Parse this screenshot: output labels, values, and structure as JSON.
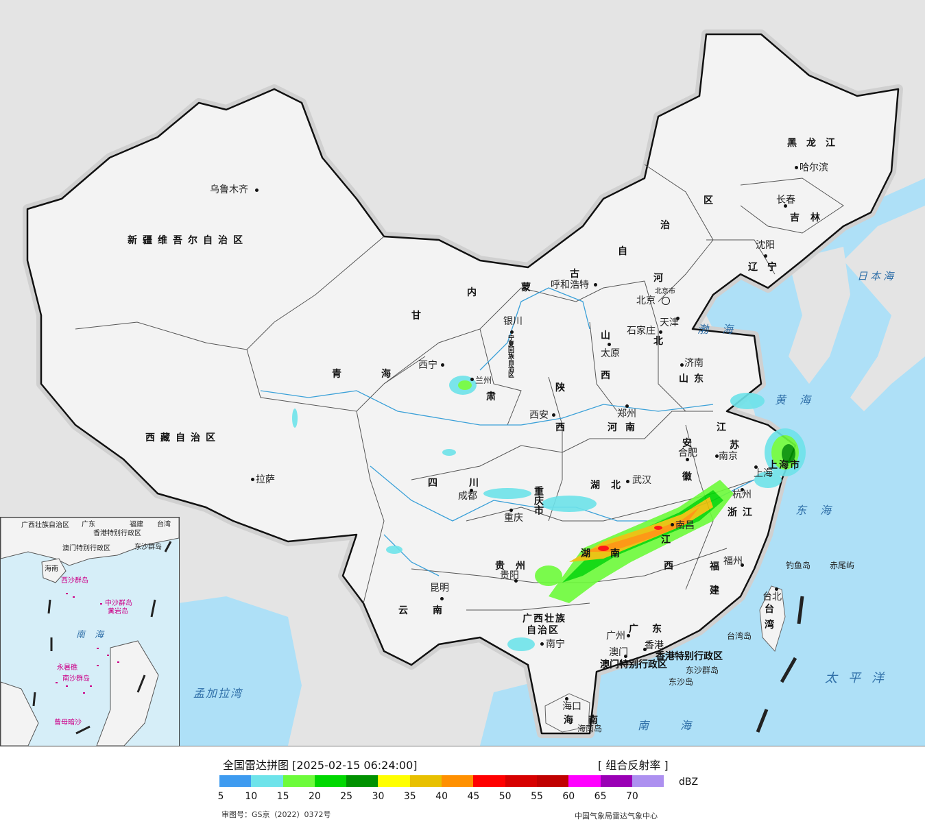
{
  "map": {
    "land_color": "#f3f3f3",
    "sea_color": "#aee0f7",
    "outside_color": "#e4e4e4",
    "border_color": "#111111"
  },
  "cities": {
    "urumqi": "乌鲁木齐",
    "lhasa": "拉萨",
    "xining": "西宁",
    "lanzhou": "兰州",
    "yinchuan": "银川",
    "hohhot": "呼和浩特",
    "beijing": "北京",
    "beijing_city": "北京市",
    "tianjin": "天津",
    "tianjin_city": "天津",
    "shijiazhuang": "石家庄",
    "taiyuan": "太原",
    "jinan": "济南",
    "zhengzhou": "郑州",
    "xian": "西安",
    "chengdu": "成都",
    "chongqing": "重庆",
    "wuhan": "武汉",
    "hefei": "合肥",
    "nanjing": "南京",
    "shanghai": "上海",
    "hangzhou": "杭州",
    "nanchang": "南昌",
    "fuzhou": "福州",
    "guiyang": "贵阳",
    "kunming": "昆明",
    "nanning": "南宁",
    "guangzhou": "广州",
    "macau": "澳门",
    "hongkong": "香港",
    "haikou": "海口",
    "taipei": "台北",
    "harbin": "哈尔滨",
    "changchun": "长春",
    "shenyang": "沈阳"
  },
  "provinces": {
    "xinjiang": "新疆维吾尔自治区",
    "xizang": "西藏自治区",
    "qinghai_1": "青",
    "qinghai_2": "海",
    "gansu_1": "甘",
    "gansu_2": "肃",
    "neimenggu_1": "内",
    "neimenggu_2": "蒙",
    "neimenggu_3": "古",
    "neimenggu_4": "自",
    "neimenggu_5": "治",
    "neimenggu_6": "区",
    "ningxia": "宁夏回族自治区",
    "shaanxi_1": "陕",
    "shaanxi_2": "西",
    "shanxi_1": "山",
    "shanxi_2": "西",
    "hebei_1": "河",
    "hebei_2": "北",
    "shandong": "山东",
    "henan": "河南",
    "sichuan": "四川",
    "chongqing": "重庆市",
    "hubei": "湖北",
    "hunan_1": "湖",
    "hunan_2": "南",
    "anhui_1": "安",
    "anhui_2": "徽",
    "jiangsu_1": "江",
    "jiangsu_2": "苏",
    "shanghai": "上海市",
    "zhejiang": "浙江",
    "jiangxi_1": "江",
    "jiangxi_2": "西",
    "fujian_1": "福",
    "fujian_2": "建",
    "guizhou": "贵州",
    "yunnan": "云南",
    "guangxi": "广西壮族",
    "guangxi_2": "自治区",
    "guangdong": "广东",
    "hongkong_sar": "香港特别行政区",
    "macau_sar": "澳门特别行政区",
    "hainan_1": "海",
    "hainan_2": "南",
    "taiwan_1": "台",
    "taiwan_2": "湾",
    "heilongjiang": "黑龙江",
    "jilin": "吉林",
    "liaoning": "辽宁"
  },
  "islands": {
    "diaoyu": "钓鱼岛",
    "chiwei": "赤尾屿",
    "taiwan_island": "台湾岛",
    "dongsha_islands": "东沙群岛",
    "dongsha_island": "东沙岛",
    "hainan_island": "海南岛"
  },
  "seas": {
    "japan_sea": "日本海",
    "bohai": "渤海",
    "yellow_sea": "黄海",
    "east_sea": "东海",
    "pacific": "太平洋",
    "south_sea": "南海",
    "bengal": "孟加拉湾"
  },
  "inset": {
    "guangxi": "广西壮族自治区",
    "guangdong": "广东",
    "fujian": "福建",
    "taiwan": "台湾",
    "hongkong": "香港特别行政区",
    "macau": "澳门特别行政区",
    "dongsha": "东沙群岛",
    "hainan": "海南",
    "xisha": "西沙群岛",
    "zhongsha": "中沙群岛",
    "huangyan": "黄岩岛",
    "nansha": "南沙群岛",
    "south_sea": "南海",
    "yongshu": "永暑礁",
    "zengmu": "曾母暗沙"
  },
  "legend": {
    "title": "全国雷达拼图 [2025-02-15 06:24:00]",
    "product": "[ 组合反射率 ]",
    "unit": "dBZ",
    "approval": "审图号：GS京（2022）0372号",
    "source": "中国气象局雷达气象中心",
    "ticks": [
      "5",
      "10",
      "15",
      "20",
      "25",
      "30",
      "35",
      "40",
      "45",
      "50",
      "55",
      "60",
      "65",
      "70"
    ],
    "colors": [
      "#3e9bf0",
      "#6ee3ea",
      "#6dfb3b",
      "#00d800",
      "#009100",
      "#ffff00",
      "#e8c000",
      "#ff9000",
      "#ff0000",
      "#d70000",
      "#c00000",
      "#ff00ff",
      "#9a00b5",
      "#ad90f0"
    ]
  }
}
